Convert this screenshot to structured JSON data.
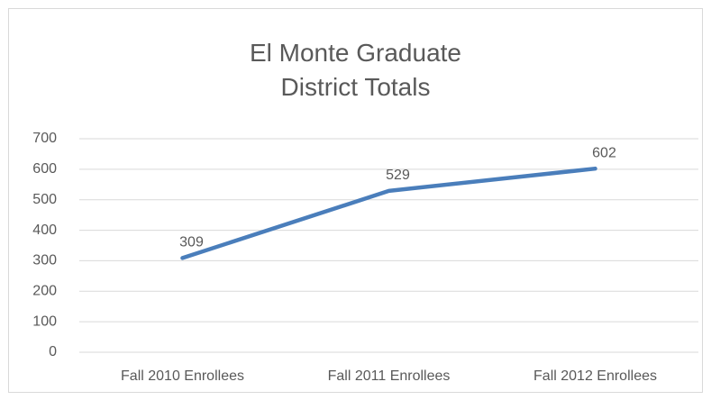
{
  "chart_data": {
    "type": "line",
    "title": "El Monte Graduate District Totals",
    "categories": [
      "Fall 2010 Enrollees",
      "Fall 2011 Enrollees",
      "Fall 2012 Enrollees"
    ],
    "values": [
      309,
      529,
      602
    ],
    "color": "#4a7ebb",
    "ylim": [
      0,
      700
    ],
    "yticks": [
      0,
      100,
      200,
      300,
      400,
      500,
      600,
      700
    ],
    "grid": true
  }
}
